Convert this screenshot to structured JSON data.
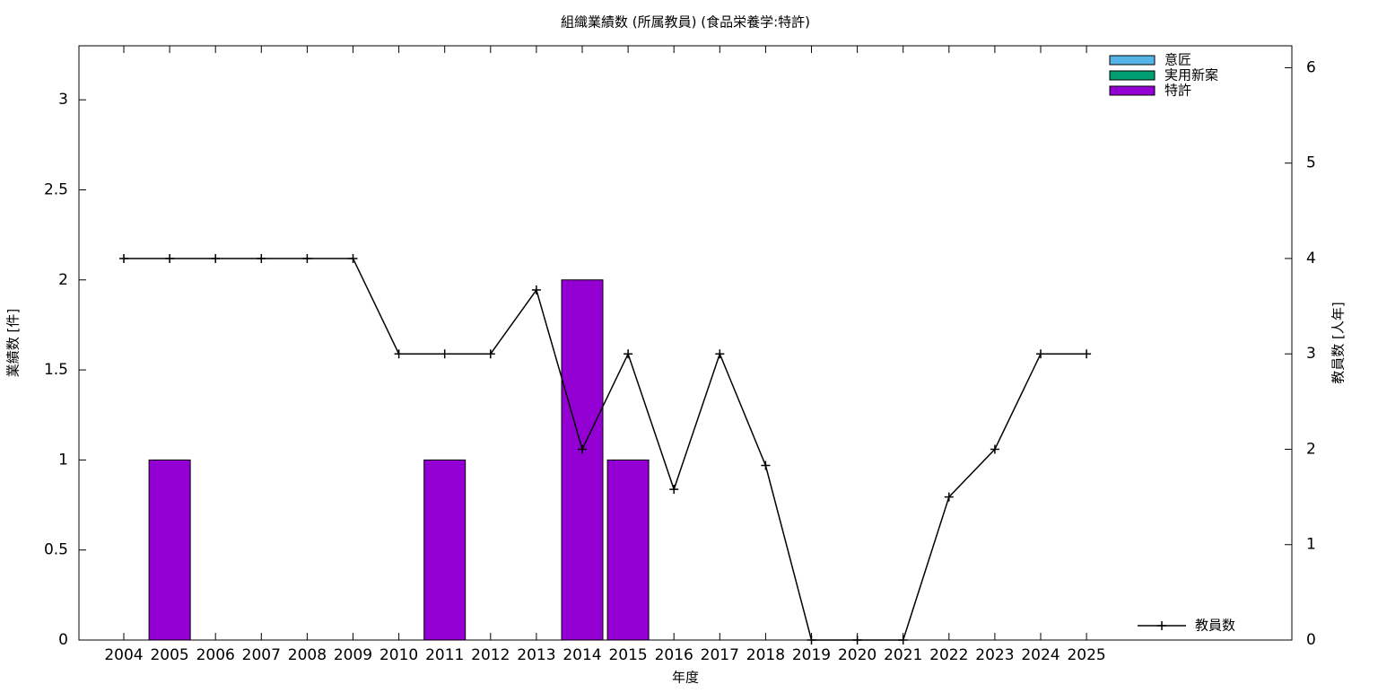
{
  "chart_data": {
    "type": "bar",
    "title": "組織業績数 (所属教員) (食品栄養学:特許)",
    "x_label": "年度",
    "y_label": "業績数 [件]",
    "y2_label": "教員数 [人年]",
    "categories": [
      "2004",
      "2005",
      "2006",
      "2007",
      "2008",
      "2009",
      "2010",
      "2011",
      "2012",
      "2013",
      "2014",
      "2015",
      "2016",
      "2017",
      "2018",
      "2019",
      "2020",
      "2021",
      "2022",
      "2023",
      "2024",
      "2025"
    ],
    "series": [
      {
        "name": "意匠",
        "color": "#56b4e9",
        "values": [
          0,
          0,
          0,
          0,
          0,
          0,
          0,
          0,
          0,
          0,
          0,
          0,
          0,
          0,
          0,
          0,
          0,
          0,
          0,
          0,
          0,
          0
        ]
      },
      {
        "name": "実用新案",
        "color": "#009e73",
        "values": [
          0,
          0,
          0,
          0,
          0,
          0,
          0,
          0,
          0,
          0,
          0,
          0,
          0,
          0,
          0,
          0,
          0,
          0,
          0,
          0,
          0,
          0
        ]
      },
      {
        "name": "特許",
        "color": "#9400d3",
        "values": [
          0,
          1,
          0,
          0,
          0,
          0,
          0,
          1,
          0,
          0,
          2,
          1,
          0,
          0,
          0,
          0,
          0,
          0,
          0,
          0,
          0,
          0
        ]
      },
      {
        "name": "教員数",
        "type": "line",
        "axis": "y2",
        "color": "#000000",
        "values": [
          4,
          4,
          4,
          4,
          4,
          4,
          3,
          3,
          3,
          3.67,
          2,
          3,
          1.58,
          3,
          1.83,
          0,
          0,
          0,
          1.5,
          2,
          3,
          3
        ]
      }
    ],
    "ylim": [
      0,
      3.3
    ],
    "yticks": [
      0,
      0.5,
      1,
      1.5,
      2,
      2.5,
      3
    ],
    "y2lim": [
      0,
      6.23
    ],
    "y2ticks": [
      0,
      1,
      2,
      3,
      4,
      5,
      6
    ]
  }
}
